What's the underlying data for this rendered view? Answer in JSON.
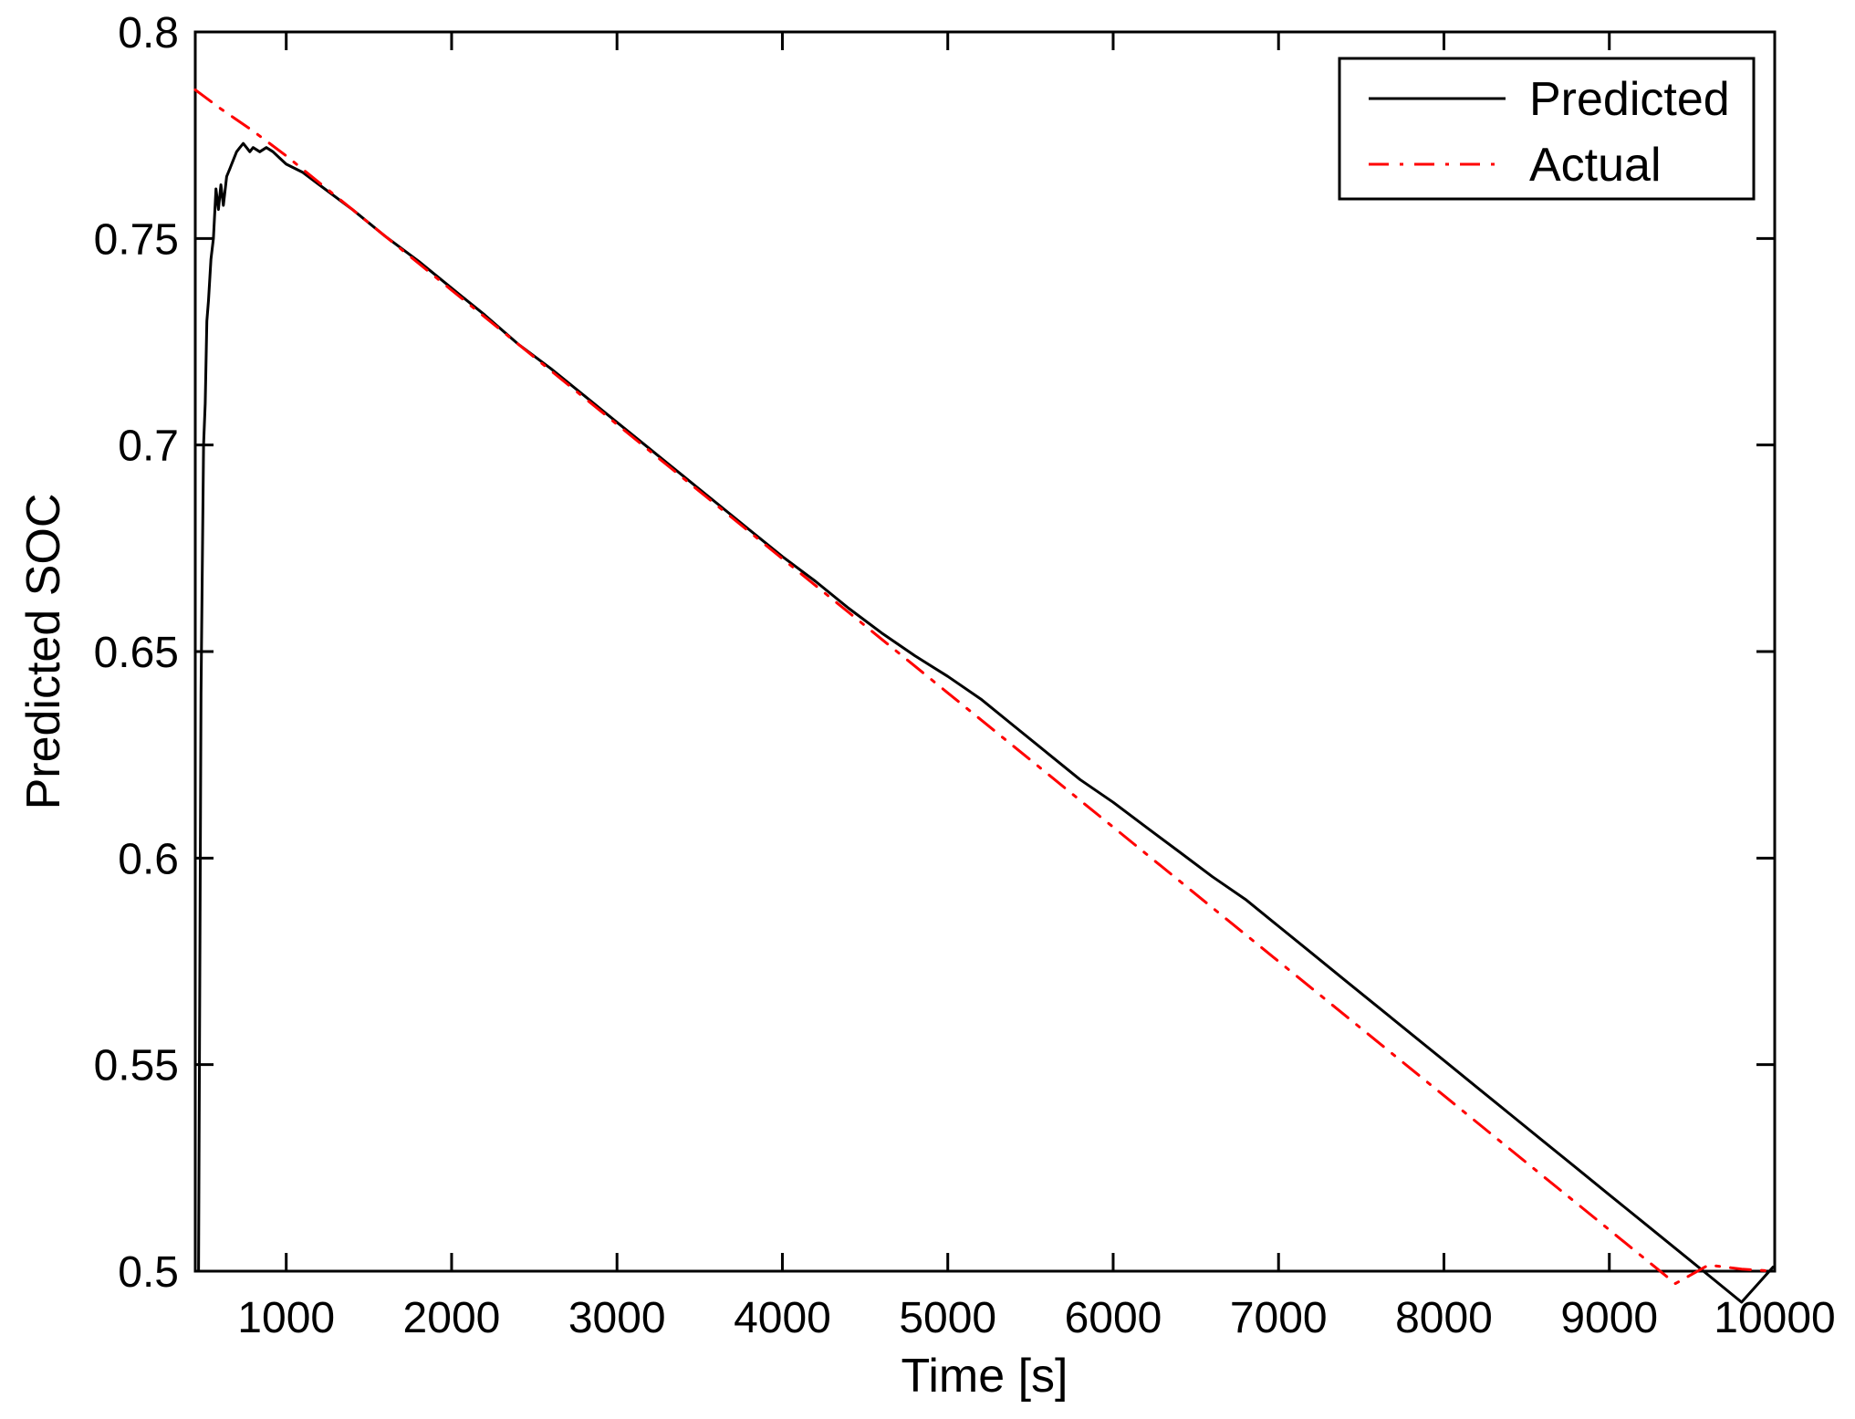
{
  "chart_data": {
    "type": "line",
    "title": "",
    "xlabel": "Time [s]",
    "ylabel": "Predicted SOC",
    "xlim": [
      450,
      10000
    ],
    "ylim": [
      0.5,
      0.8
    ],
    "xticks": [
      1000,
      2000,
      3000,
      4000,
      5000,
      6000,
      7000,
      8000,
      9000,
      10000
    ],
    "xtick_labels": [
      "1000",
      "2000",
      "3000",
      "4000",
      "5000",
      "6000",
      "7000",
      "8000",
      "9000",
      "10000"
    ],
    "yticks": [
      0.5,
      0.55,
      0.6,
      0.65,
      0.7,
      0.75,
      0.8
    ],
    "ytick_labels": [
      "0.5",
      "0.55",
      "0.6",
      "0.65",
      "0.7",
      "0.75",
      "0.8"
    ],
    "grid": false,
    "legend_position": "top-right",
    "series": [
      {
        "name": "Predicted",
        "color": "#000000",
        "style": "solid",
        "x": [
          470,
          485,
          500,
          510,
          520,
          530,
          545,
          560,
          575,
          590,
          605,
          620,
          640,
          660,
          680,
          700,
          720,
          740,
          760,
          780,
          800,
          840,
          880,
          920,
          960,
          1000,
          1100,
          1200,
          1400,
          1600,
          1800,
          2000,
          2200,
          2400,
          2600,
          2800,
          3000,
          3200,
          3400,
          3600,
          3800,
          4000,
          4200,
          4400,
          4600,
          4800,
          5000,
          5200,
          5400,
          5600,
          5800,
          6000,
          6200,
          6400,
          6600,
          6800,
          7000,
          7200,
          7400,
          7600,
          7800,
          8000,
          8200,
          8400,
          8600,
          8800,
          9000,
          9200,
          9400,
          9600,
          9800,
          9990
        ],
        "y": [
          0.5,
          0.64,
          0.7,
          0.71,
          0.73,
          0.735,
          0.745,
          0.75,
          0.762,
          0.757,
          0.763,
          0.758,
          0.765,
          0.767,
          0.769,
          0.771,
          0.772,
          0.773,
          0.772,
          0.771,
          0.772,
          0.771,
          0.772,
          0.771,
          0.7695,
          0.768,
          0.766,
          0.763,
          0.757,
          0.7505,
          0.7445,
          0.738,
          0.7315,
          0.7245,
          0.7185,
          0.712,
          0.7055,
          0.699,
          0.6925,
          0.686,
          0.6795,
          0.673,
          0.667,
          0.6605,
          0.6545,
          0.649,
          0.644,
          0.6385,
          0.632,
          0.6255,
          0.619,
          0.6135,
          0.6075,
          0.6015,
          0.5955,
          0.59,
          0.5835,
          0.577,
          0.5705,
          0.564,
          0.5575,
          0.551,
          0.5445,
          0.538,
          0.5315,
          0.525,
          0.5185,
          0.512,
          0.5055,
          0.499,
          0.4925,
          0.501
        ]
      },
      {
        "name": "Actual",
        "color": "#ff0000",
        "style": "dashdot",
        "x": [
          450,
          600,
          800,
          1000,
          1200,
          1400,
          1600,
          1800,
          2000,
          2200,
          2400,
          2600,
          2800,
          3000,
          3200,
          3400,
          3600,
          3800,
          4000,
          4200,
          4400,
          4600,
          4800,
          5000,
          5200,
          5400,
          5600,
          5800,
          6000,
          6200,
          6400,
          6600,
          6800,
          7000,
          7200,
          7400,
          7600,
          7800,
          8000,
          8200,
          8400,
          8600,
          8800,
          9000,
          9200,
          9400,
          9600,
          9800,
          9990
        ],
        "y": [
          0.786,
          0.7815,
          0.776,
          0.77,
          0.7635,
          0.757,
          0.7505,
          0.744,
          0.7375,
          0.731,
          0.7245,
          0.718,
          0.7115,
          0.705,
          0.6985,
          0.692,
          0.6855,
          0.679,
          0.6725,
          0.666,
          0.6595,
          0.653,
          0.6465,
          0.64,
          0.6335,
          0.627,
          0.6205,
          0.614,
          0.6075,
          0.601,
          0.5945,
          0.588,
          0.5815,
          0.575,
          0.5685,
          0.562,
          0.5555,
          0.549,
          0.5425,
          0.536,
          0.5295,
          0.523,
          0.5165,
          0.51,
          0.5035,
          0.497,
          0.5015,
          0.5005,
          0.5
        ]
      }
    ]
  }
}
